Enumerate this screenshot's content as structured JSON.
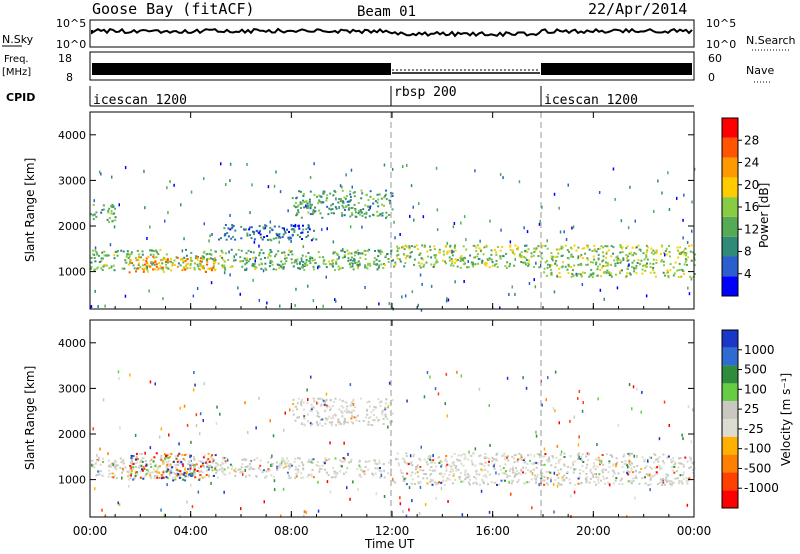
{
  "header": {
    "station": "Goose Bay (fitACF)",
    "beam": "Beam 01",
    "date": "22/Apr/2014"
  },
  "panels": {
    "nsky": {
      "label": "N.Sky",
      "right_label": "N.Search",
      "tick_top": "10^5",
      "tick_bottom": "10^0"
    },
    "freq": {
      "label_line1": "Freq.",
      "label_line2": "[MHz]",
      "tick_top": "18",
      "tick_bottom": "8",
      "right_label": "Nave",
      "right_tick_top": "60",
      "right_tick_bottom": "0"
    },
    "cpid": {
      "label": "CPID",
      "segments": [
        {
          "name": "icescan 1200",
          "start_hour": 0
        },
        {
          "name": "rbsp 200",
          "start_hour": 12
        },
        {
          "name": "icescan 1200",
          "start_hour": 18
        }
      ]
    }
  },
  "colors": {
    "power_scale": [
      "#0000ff",
      "#2b5fd0",
      "#2f8a7a",
      "#55aa55",
      "#88cc44",
      "#ffcc00",
      "#ff9900",
      "#ff5500",
      "#ff0000"
    ],
    "velocity_scale": [
      "#1a37c8",
      "#2f6bd0",
      "#2f8c3a",
      "#66cc44",
      "#c8c8c0",
      "#dcdcd0",
      "#ffb000",
      "#ff8000",
      "#ff4000",
      "#ff0000"
    ]
  },
  "chart_data": [
    {
      "type": "heatmap",
      "title": "",
      "xlabel": "",
      "ylabel": "Slant Range [km]",
      "xlim_hours": [
        0,
        24
      ],
      "ylim_km": [
        180,
        4500
      ],
      "x_ticks": [
        "00:00",
        "04:00",
        "08:00",
        "12:00",
        "16:00",
        "20:00",
        "00:00"
      ],
      "y_ticks": [
        1000,
        2000,
        3000,
        4000
      ],
      "colorbar": {
        "label": "Power [dB]",
        "ticks": [
          "4",
          "8",
          "12",
          "16",
          "20",
          "24",
          "28"
        ],
        "range": [
          0,
          30
        ]
      },
      "regions": [
        {
          "t": [
            0.0,
            12.0
          ],
          "r": [
            1050,
            1500
          ],
          "value": 12
        },
        {
          "t": [
            1.5,
            5.0
          ],
          "r": [
            1000,
            1350
          ],
          "value": 22
        },
        {
          "t": [
            0.0,
            1.0
          ],
          "r": [
            2100,
            2500
          ],
          "value": 10
        },
        {
          "t": [
            5.0,
            9.0
          ],
          "r": [
            1700,
            2050
          ],
          "value": 6
        },
        {
          "t": [
            8.0,
            12.0
          ],
          "r": [
            2200,
            2800
          ],
          "value": 10
        },
        {
          "t": [
            12.0,
            18.0
          ],
          "r": [
            1100,
            1600
          ],
          "value": 14
        },
        {
          "t": [
            18.0,
            24.0
          ],
          "r": [
            900,
            1600
          ],
          "value": 14
        }
      ]
    },
    {
      "type": "heatmap",
      "title": "",
      "xlabel": "Time UT",
      "ylabel": "Slant Range [km]",
      "xlim_hours": [
        0,
        24
      ],
      "ylim_km": [
        180,
        4500
      ],
      "x_ticks": [
        "00:00",
        "04:00",
        "08:00",
        "12:00",
        "16:00",
        "20:00",
        "00:00"
      ],
      "y_ticks": [
        1000,
        2000,
        3000,
        4000
      ],
      "colorbar": {
        "label": "Velocity [m s⁻¹]",
        "ticks": [
          "1000",
          "500",
          "100",
          "25",
          "-25",
          "-100",
          "-500",
          "-1000"
        ]
      },
      "regions": [
        {
          "t": [
            0.0,
            12.0
          ],
          "r": [
            1050,
            1500
          ],
          "value": "ground"
        },
        {
          "t": [
            1.5,
            5.0
          ],
          "r": [
            1000,
            1600
          ],
          "value": "-100"
        },
        {
          "t": [
            12.0,
            24.0
          ],
          "r": [
            900,
            1600
          ],
          "value": "ground"
        },
        {
          "t": [
            8.0,
            12.0
          ],
          "r": [
            2200,
            2800
          ],
          "value": "ground"
        }
      ]
    }
  ],
  "axis": {
    "time_label": "Time UT"
  }
}
